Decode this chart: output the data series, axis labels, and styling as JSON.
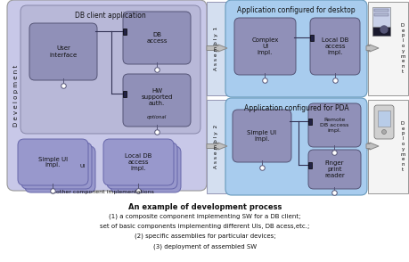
{
  "fig_width": 4.6,
  "fig_height": 2.94,
  "dpi": 100,
  "bg_color": "#ffffff",
  "caption_bold": "An example of development process",
  "caption_lines": [
    "(1) a composite component implementing SW for a DB client;",
    "set of basic components implementing different UIs, DB acess,etc.;",
    "(2) specific assemblies for particular devices;",
    "(3) deployment of assembled SW"
  ],
  "colors": {
    "dev_outer": "#c8c8e8",
    "dev_inner": "#b8b8d8",
    "db_client_bg": "#b0b0d0",
    "component_bg": "#9090b8",
    "component_bg2": "#9898cc",
    "assembly_bg": "#a0c8e8",
    "assembly_inner": "#9090b8",
    "deployment_bg": "#f4f4f4",
    "arrow_fill": "#c8c8c8",
    "arrow_edge": "#888888",
    "connector": "#333355",
    "lollipop_fill": "#ffffff",
    "port_fill": "#222244"
  }
}
